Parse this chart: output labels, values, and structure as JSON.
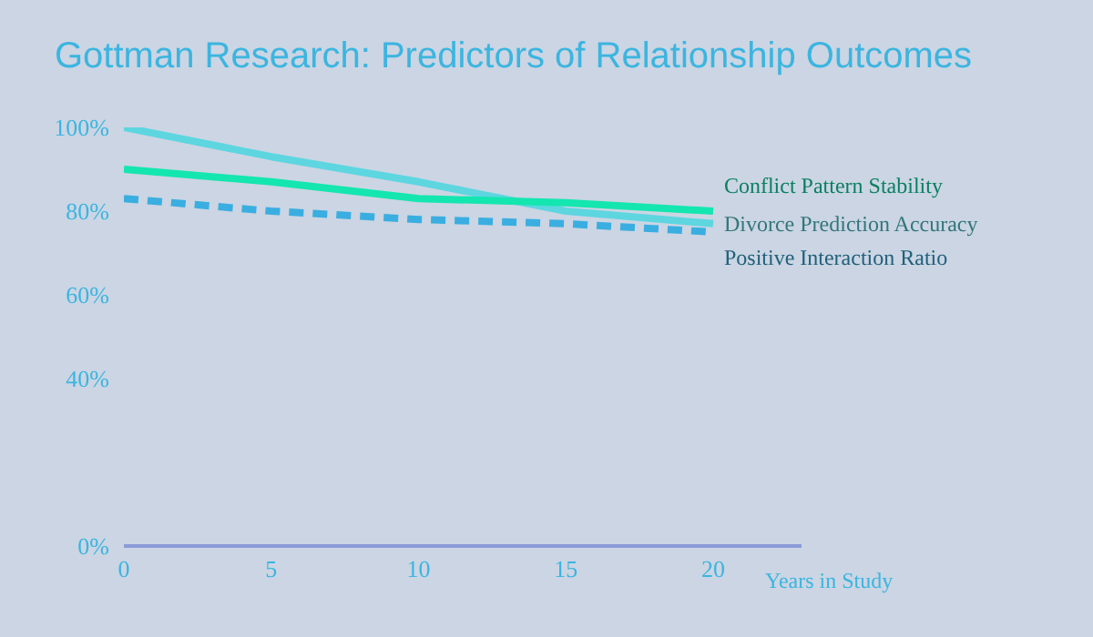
{
  "chart_data": {
    "type": "line",
    "title": "Gottman Research: Predictors of Relationship Outcomes",
    "xlabel": "Years in Study",
    "x": [
      0,
      5,
      10,
      15,
      20
    ],
    "series": [
      {
        "name": "Divorce Prediction Accuracy",
        "color": "#5dd6e0",
        "values": [
          100,
          93,
          87,
          80,
          77
        ]
      },
      {
        "name": "Conflict Pattern Stability",
        "color": "#14e6b0",
        "values": [
          90,
          87,
          83,
          82,
          80
        ]
      },
      {
        "name": "Positive Interaction Ratio",
        "color": "#3aaee0",
        "values": [
          83,
          80,
          78,
          77,
          75
        ],
        "line_style": "dashed"
      }
    ],
    "xlim": [
      0,
      23
    ],
    "xticks": [
      0,
      5,
      10,
      15,
      20
    ],
    "ylim": [
      0,
      100
    ],
    "yticks": [
      {
        "value": 0,
        "label": "0%"
      },
      {
        "value": 40,
        "label": "40%"
      },
      {
        "value": 60,
        "label": "60%"
      },
      {
        "value": 80,
        "label": "80%"
      },
      {
        "value": 100,
        "label": "100%"
      }
    ],
    "grid": false,
    "legend": false,
    "marker": "none",
    "line_style": "solid"
  }
}
